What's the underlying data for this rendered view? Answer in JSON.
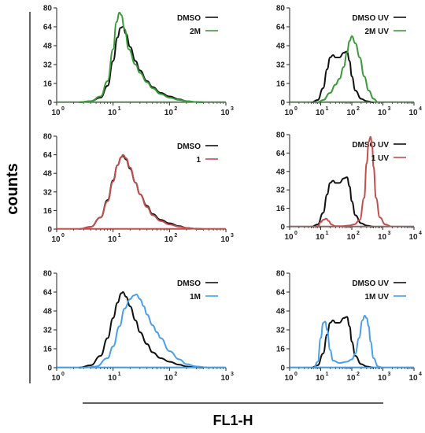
{
  "ylabel": "counts",
  "xlabel": "FL1-H",
  "colors": {
    "black": "#111111",
    "green": "#3a9a3a",
    "red": "#c0504d",
    "blue": "#4a9fe6"
  },
  "chart_data": [
    {
      "type": "line",
      "xscale": "log",
      "xlim": [
        1,
        1000
      ],
      "ylim": [
        0,
        80
      ],
      "yticks": [
        0,
        16,
        32,
        48,
        64,
        80
      ],
      "xticks": [
        {
          "base": "10",
          "exp": "0"
        },
        {
          "base": "10",
          "exp": "1"
        },
        {
          "base": "10",
          "exp": "2"
        },
        {
          "base": "10",
          "exp": "3"
        }
      ],
      "legend": "top-right",
      "series": [
        {
          "name": "DMSO",
          "color": "#111111",
          "x": [
            2.5,
            4,
            6,
            8,
            10,
            12,
            13.5,
            15,
            17,
            20,
            25,
            30,
            40,
            50,
            70,
            100,
            150,
            200,
            300,
            400
          ],
          "y": [
            0,
            1,
            4,
            14,
            35,
            55,
            63,
            64,
            58,
            47,
            35,
            27,
            18,
            13,
            8,
            5,
            2.5,
            1,
            0.3,
            0
          ]
        },
        {
          "name": "2M",
          "color": "#3a9a3a",
          "x": [
            2.5,
            4,
            6,
            8,
            10,
            11.5,
            13,
            14,
            16,
            19,
            25,
            30,
            40,
            50,
            70,
            100,
            150,
            200,
            300,
            400
          ],
          "y": [
            0,
            1,
            5,
            18,
            45,
            68,
            76,
            74,
            62,
            45,
            32,
            25,
            17,
            12,
            7,
            4,
            2,
            1,
            0.3,
            0
          ]
        }
      ]
    },
    {
      "type": "line",
      "xscale": "log",
      "xlim": [
        1,
        10000
      ],
      "ylim": [
        0,
        80
      ],
      "yticks": [
        0,
        16,
        32,
        48,
        64,
        80
      ],
      "xticks": [
        {
          "base": "10",
          "exp": "0"
        },
        {
          "base": "10",
          "exp": "1"
        },
        {
          "base": "10",
          "exp": "2"
        },
        {
          "base": "10",
          "exp": "3"
        },
        {
          "base": "10",
          "exp": "4"
        }
      ],
      "legend": "top-right",
      "series": [
        {
          "name": "DMSO UV",
          "color": "#111111",
          "x": [
            5,
            8,
            12,
            16,
            20,
            25,
            30,
            40,
            55,
            70,
            85,
            100,
            130,
            200,
            300,
            500
          ],
          "y": [
            0,
            2,
            12,
            28,
            38,
            40,
            38,
            38,
            42,
            43,
            35,
            22,
            10,
            3,
            1,
            0
          ]
        },
        {
          "name": "2M UV",
          "color": "#3a9a3a",
          "x": [
            8,
            12,
            20,
            30,
            40,
            55,
            70,
            85,
            100,
            130,
            180,
            250,
            350,
            500,
            700
          ],
          "y": [
            0,
            2,
            8,
            15,
            20,
            30,
            42,
            52,
            56,
            50,
            38,
            22,
            10,
            3,
            0
          ]
        }
      ]
    },
    {
      "type": "line",
      "xscale": "log",
      "xlim": [
        1,
        1000
      ],
      "ylim": [
        0,
        80
      ],
      "yticks": [
        0,
        16,
        32,
        48,
        64,
        80
      ],
      "xticks": [
        {
          "base": "10",
          "exp": "0"
        },
        {
          "base": "10",
          "exp": "1"
        },
        {
          "base": "10",
          "exp": "2"
        },
        {
          "base": "10",
          "exp": "3"
        }
      ],
      "legend": "top-right",
      "series": [
        {
          "name": "DMSO",
          "color": "#111111",
          "x": [
            2.5,
            4,
            6,
            8,
            10,
            12,
            14,
            15,
            17,
            20,
            25,
            30,
            40,
            50,
            70,
            100,
            150,
            200,
            300,
            400
          ],
          "y": [
            0,
            2,
            10,
            25,
            42,
            55,
            62,
            63,
            60,
            52,
            40,
            30,
            20,
            13,
            8,
            5,
            2.5,
            1,
            0.3,
            0
          ]
        },
        {
          "name": "1",
          "color": "#c0504d",
          "x": [
            2.5,
            4,
            6,
            8,
            10,
            12,
            14,
            15,
            17,
            20,
            25,
            30,
            40,
            50,
            70,
            100,
            150,
            200,
            300,
            400
          ],
          "y": [
            0,
            2,
            10,
            24,
            41,
            55,
            62,
            64,
            61,
            53,
            40,
            30,
            19,
            12,
            7,
            4,
            2,
            1,
            0.2,
            0
          ]
        }
      ]
    },
    {
      "type": "line",
      "xscale": "log",
      "xlim": [
        1,
        10000
      ],
      "ylim": [
        0,
        80
      ],
      "yticks": [
        0,
        16,
        32,
        48,
        64,
        80
      ],
      "xticks": [
        {
          "base": "10",
          "exp": "0"
        },
        {
          "base": "10",
          "exp": "1"
        },
        {
          "base": "10",
          "exp": "2"
        },
        {
          "base": "10",
          "exp": "3"
        },
        {
          "base": "10",
          "exp": "4"
        }
      ],
      "legend": "top-right",
      "series": [
        {
          "name": "DMSO UV",
          "color": "#111111",
          "x": [
            5,
            8,
            12,
            16,
            20,
            25,
            30,
            40,
            55,
            70,
            85,
            100,
            130,
            200,
            300,
            500
          ],
          "y": [
            0,
            2,
            12,
            28,
            38,
            40,
            38,
            38,
            42,
            43,
            35,
            22,
            10,
            3,
            1,
            0
          ]
        },
        {
          "name": "1 UV",
          "color": "#c0504d",
          "x": [
            8,
            10,
            12,
            15,
            18,
            22,
            30,
            50,
            80,
            120,
            180,
            250,
            300,
            350,
            400,
            450,
            500,
            600,
            800,
            1200,
            2000
          ],
          "y": [
            0,
            4,
            6,
            7,
            5,
            2,
            0.5,
            0.5,
            1,
            2,
            6,
            25,
            55,
            74,
            78,
            70,
            52,
            25,
            8,
            2,
            0
          ]
        }
      ]
    },
    {
      "type": "line",
      "xscale": "log",
      "xlim": [
        1,
        1000
      ],
      "ylim": [
        0,
        80
      ],
      "yticks": [
        0,
        16,
        32,
        48,
        64,
        80
      ],
      "xticks": [
        {
          "base": "10",
          "exp": "0"
        },
        {
          "base": "10",
          "exp": "1"
        },
        {
          "base": "10",
          "exp": "2"
        },
        {
          "base": "10",
          "exp": "3"
        }
      ],
      "legend": "top-right",
      "series": [
        {
          "name": "DMSO",
          "color": "#111111",
          "x": [
            2.5,
            4,
            6,
            8,
            10,
            12,
            14,
            15,
            17,
            20,
            25,
            30,
            40,
            50,
            70,
            100,
            150,
            200,
            300,
            400
          ],
          "y": [
            0,
            2,
            10,
            25,
            42,
            55,
            63,
            64,
            60,
            52,
            40,
            30,
            20,
            13,
            8,
            5,
            2.5,
            1,
            0.3,
            0
          ]
        },
        {
          "name": "1M",
          "color": "#4a9fe6",
          "x": [
            3,
            5,
            8,
            10,
            13,
            16,
            20,
            23,
            26,
            30,
            35,
            40,
            50,
            60,
            70,
            100,
            150,
            200,
            300,
            500
          ],
          "y": [
            0,
            1,
            8,
            18,
            35,
            50,
            58,
            61,
            62,
            58,
            52,
            45,
            36,
            30,
            25,
            14,
            7,
            3,
            1,
            0
          ]
        }
      ]
    },
    {
      "type": "line",
      "xscale": "log",
      "xlim": [
        1,
        10000
      ],
      "ylim": [
        0,
        80
      ],
      "yticks": [
        0,
        16,
        32,
        48,
        64,
        80
      ],
      "xticks": [
        {
          "base": "10",
          "exp": "0"
        },
        {
          "base": "10",
          "exp": "1"
        },
        {
          "base": "10",
          "exp": "2"
        },
        {
          "base": "10",
          "exp": "3"
        },
        {
          "base": "10",
          "exp": "4"
        }
      ],
      "legend": "top-right",
      "series": [
        {
          "name": "DMSO UV",
          "color": "#111111",
          "x": [
            5,
            8,
            12,
            16,
            20,
            25,
            30,
            40,
            55,
            70,
            85,
            100,
            130,
            200,
            300,
            500
          ],
          "y": [
            0,
            2,
            12,
            28,
            38,
            40,
            38,
            38,
            42,
            43,
            35,
            22,
            10,
            3,
            1,
            0
          ]
        },
        {
          "name": "1M UV",
          "color": "#4a9fe6",
          "x": [
            6,
            8,
            10,
            12,
            14,
            16,
            20,
            25,
            40,
            70,
            100,
            130,
            170,
            220,
            260,
            300,
            350,
            400,
            500,
            700,
            1000
          ],
          "y": [
            0,
            5,
            25,
            38,
            39,
            32,
            15,
            6,
            4,
            5,
            7,
            12,
            25,
            40,
            44,
            42,
            35,
            22,
            8,
            1,
            0
          ]
        }
      ]
    }
  ]
}
